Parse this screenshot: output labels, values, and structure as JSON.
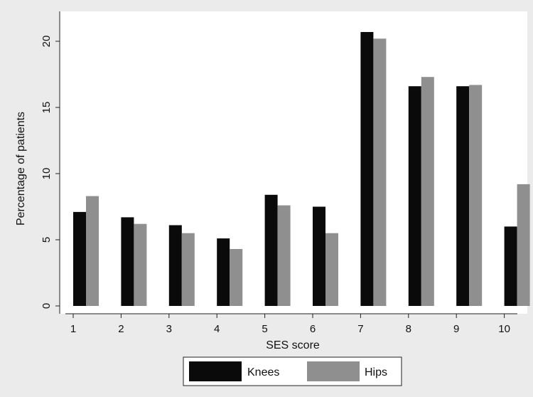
{
  "colors": {
    "background": "#ebebeb",
    "plot_area": "#ffffff",
    "knees": "#0a0a0a",
    "hips": "#8f8f8f",
    "axis": "#222222"
  },
  "chart_data": {
    "type": "bar",
    "categories": [
      "1",
      "2",
      "3",
      "4",
      "5",
      "6",
      "7",
      "8",
      "9",
      "10"
    ],
    "series": [
      {
        "name": "Knees",
        "values": [
          7.1,
          6.7,
          6.1,
          5.1,
          8.4,
          7.5,
          20.7,
          16.6,
          16.6,
          6.0
        ]
      },
      {
        "name": "Hips",
        "values": [
          8.3,
          6.2,
          5.5,
          4.3,
          7.6,
          5.5,
          20.2,
          17.3,
          16.7,
          9.2
        ]
      }
    ],
    "title": "",
    "xlabel": "SES score",
    "ylabel": "Percentage of patients",
    "ylim": [
      0,
      21.5
    ],
    "yticks": [
      "0",
      "5",
      "10",
      "15",
      "20"
    ],
    "grid": false,
    "legend_position": "bottom"
  }
}
